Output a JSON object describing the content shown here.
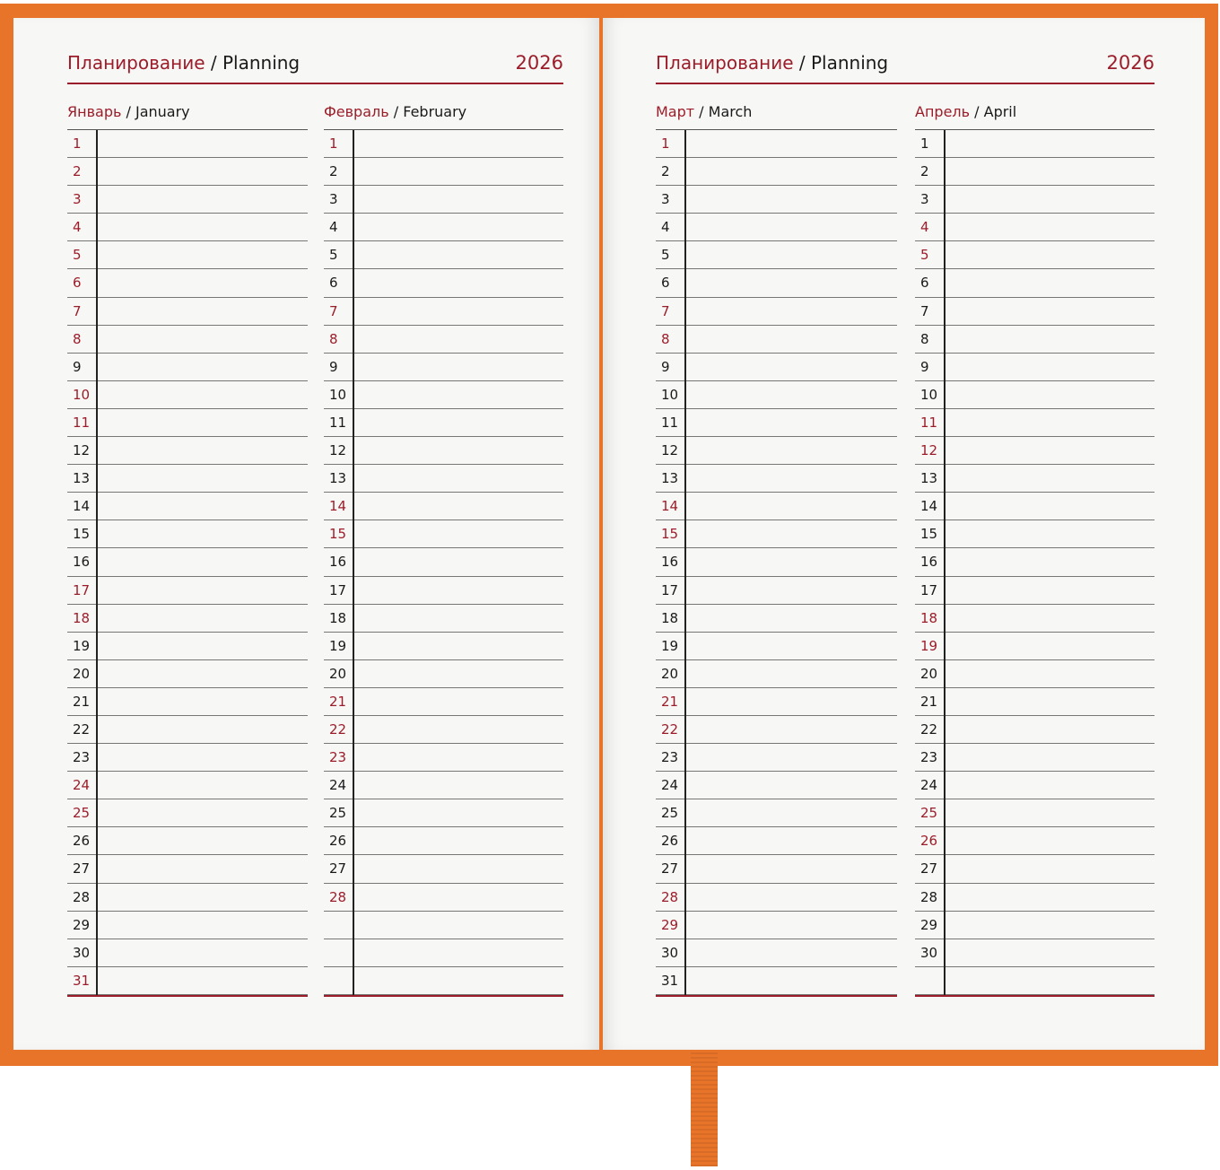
{
  "colors": {
    "cover": "#e8742a",
    "accent": "#9c1d2a",
    "page": "#f7f7f5"
  },
  "left_page": {
    "title_ru": "Планирование",
    "title_sep": " / ",
    "title_en": "Planning",
    "year": "2026"
  },
  "right_page": {
    "title_ru": "Планирование",
    "title_sep": " / ",
    "title_en": "Planning",
    "year": "2026"
  },
  "months": [
    {
      "name_ru": "Январь",
      "name_en": "January",
      "days": 31,
      "red_days": [
        1,
        2,
        3,
        4,
        5,
        6,
        7,
        8,
        10,
        11,
        17,
        18,
        24,
        25,
        31
      ]
    },
    {
      "name_ru": "Февраль",
      "name_en": "February",
      "days": 28,
      "red_days": [
        1,
        7,
        8,
        14,
        15,
        21,
        22,
        23,
        28
      ]
    },
    {
      "name_ru": "Март",
      "name_en": "March",
      "days": 31,
      "red_days": [
        1,
        7,
        8,
        14,
        15,
        21,
        22,
        28,
        29
      ]
    },
    {
      "name_ru": "Апрель",
      "name_en": "April",
      "days": 30,
      "red_days": [
        4,
        5,
        11,
        12,
        18,
        19,
        25,
        26
      ]
    }
  ]
}
